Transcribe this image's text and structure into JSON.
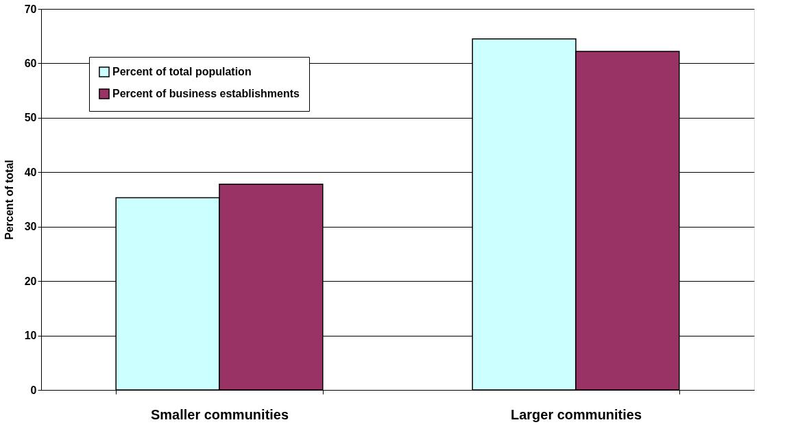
{
  "chart_data": {
    "type": "bar",
    "ylabel": "Percent of total",
    "categories": [
      "Smaller communities",
      "Larger communities"
    ],
    "series": [
      {
        "name": "Percent of total population",
        "color": "#ccffff",
        "values": [
          35.3,
          64.5
        ]
      },
      {
        "name": "Percent of business establishments",
        "color": "#993366",
        "values": [
          37.8,
          62.2
        ]
      }
    ],
    "ylim": [
      0,
      70
    ],
    "yticks": [
      0,
      10,
      20,
      30,
      40,
      50,
      60,
      70
    ],
    "grid": "y",
    "legend": "top left"
  }
}
